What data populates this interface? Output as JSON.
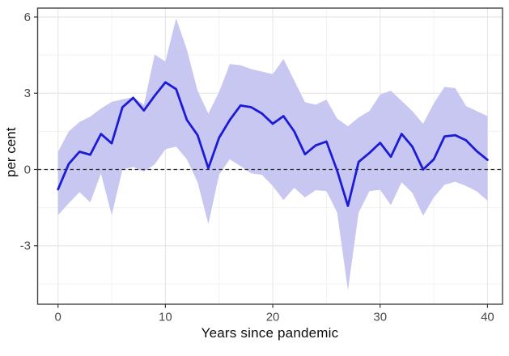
{
  "chart_data": {
    "type": "line",
    "title": "",
    "xlabel": "Years since pandemic",
    "ylabel": "per cent",
    "legend_position": "none",
    "grid": true,
    "x_ticks": [
      0,
      10,
      20,
      30,
      40
    ],
    "x_minor_ticks": [
      5,
      15,
      25,
      35
    ],
    "y_ticks": [
      -3,
      0,
      3,
      6
    ],
    "y_minor_ticks": [
      -4.5,
      -1.5,
      1.5,
      4.5
    ],
    "x_range": [
      -1.9,
      41.4
    ],
    "y_range": [
      -5.3,
      6.35
    ],
    "zero_line": 0,
    "x": [
      0,
      1,
      2,
      3,
      4,
      5,
      6,
      7,
      8,
      9,
      10,
      11,
      12,
      13,
      14,
      15,
      16,
      17,
      18,
      19,
      20,
      21,
      22,
      23,
      24,
      25,
      26,
      27,
      28,
      29,
      30,
      31,
      32,
      33,
      34,
      35,
      36,
      37,
      38,
      39,
      40
    ],
    "series": [
      {
        "name": "point estimate",
        "values": [
          -0.78,
          0.22,
          0.7,
          0.58,
          1.4,
          1.03,
          2.45,
          2.82,
          2.32,
          2.9,
          3.43,
          3.16,
          1.95,
          1.35,
          0.05,
          1.25,
          1.95,
          2.52,
          2.45,
          2.2,
          1.8,
          2.1,
          1.5,
          0.6,
          0.95,
          1.1,
          -0.05,
          -1.43,
          0.3,
          0.65,
          1.05,
          0.5,
          1.4,
          0.9,
          0.0,
          0.4,
          1.3,
          1.35,
          1.15,
          0.72,
          0.38
        ]
      },
      {
        "name": "confidence band upper",
        "values": [
          0.7,
          1.5,
          1.87,
          2.08,
          2.4,
          2.66,
          2.76,
          2.85,
          2.55,
          4.52,
          4.25,
          5.95,
          4.72,
          3.1,
          2.2,
          3.05,
          4.15,
          4.1,
          3.95,
          3.85,
          3.75,
          4.35,
          3.5,
          2.65,
          2.55,
          2.75,
          2.0,
          1.7,
          2.05,
          2.3,
          2.95,
          3.1,
          2.7,
          2.3,
          1.8,
          2.6,
          3.25,
          3.2,
          2.5,
          2.3,
          2.1
        ]
      },
      {
        "name": "confidence band lower",
        "values": [
          -1.8,
          -1.33,
          -0.89,
          -1.29,
          -0.16,
          -1.8,
          0.0,
          0.1,
          -0.08,
          0.2,
          0.8,
          0.9,
          0.4,
          -0.5,
          -2.15,
          -0.2,
          0.4,
          0.13,
          -0.15,
          -0.21,
          -0.65,
          -1.2,
          -0.72,
          -1.1,
          -0.81,
          -0.85,
          -1.7,
          -4.75,
          -1.7,
          -0.85,
          -0.8,
          -1.4,
          -0.5,
          -0.92,
          -1.82,
          -1.1,
          -0.6,
          -0.48,
          -0.65,
          -0.86,
          -1.23
        ]
      }
    ],
    "colors": {
      "line": "#1c1cd6",
      "band": "#c7c7f2",
      "zero_line": "#2b2b2b",
      "grid_major": "#e8e8e8",
      "grid_minor": "#f3f3f3",
      "panel_border": "#454545",
      "tick_mark": "#333333",
      "tick_text": "#4a4a4a",
      "axis_title": "#0d0d0d",
      "panel_background": "#ffffff"
    }
  }
}
